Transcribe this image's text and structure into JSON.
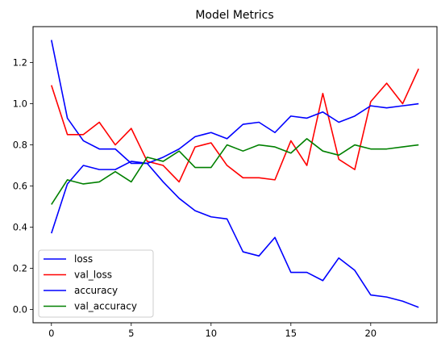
{
  "chart_data": {
    "type": "line",
    "title": "Model Metrics",
    "xlabel": "",
    "ylabel": "",
    "x": [
      0,
      1,
      2,
      3,
      4,
      5,
      6,
      7,
      8,
      9,
      10,
      11,
      12,
      13,
      14,
      15,
      16,
      17,
      18,
      19,
      20,
      21,
      22,
      23
    ],
    "xlim": [
      -1.15,
      24.15
    ],
    "ylim": [
      -0.065,
      1.375
    ],
    "xticks": [
      0,
      5,
      10,
      15,
      20
    ],
    "xtick_labels": [
      "0",
      "5",
      "10",
      "15",
      "20"
    ],
    "yticks": [
      0.0,
      0.2,
      0.4,
      0.6,
      0.8,
      1.0,
      1.2
    ],
    "ytick_labels": [
      "0.0",
      "0.2",
      "0.4",
      "0.6",
      "0.8",
      "1.0",
      "1.2"
    ],
    "grid": false,
    "legend_position": "lower-left",
    "series": [
      {
        "name": "loss",
        "color": "#0000ff",
        "values": [
          1.31,
          0.93,
          0.82,
          0.78,
          0.78,
          0.71,
          0.71,
          0.62,
          0.54,
          0.48,
          0.45,
          0.44,
          0.28,
          0.26,
          0.35,
          0.18,
          0.18,
          0.14,
          0.25,
          0.19,
          0.07,
          0.06,
          0.04,
          0.01
        ]
      },
      {
        "name": "val_loss",
        "color": "#ff0000",
        "values": [
          1.09,
          0.85,
          0.85,
          0.91,
          0.8,
          0.88,
          0.72,
          0.7,
          0.62,
          0.79,
          0.81,
          0.7,
          0.64,
          0.64,
          0.63,
          0.82,
          0.7,
          1.05,
          0.73,
          0.68,
          1.01,
          1.1,
          1.0,
          1.17
        ]
      },
      {
        "name": "accuracy",
        "color": "#0000ff",
        "values": [
          0.37,
          0.61,
          0.7,
          0.68,
          0.68,
          0.72,
          0.71,
          0.74,
          0.78,
          0.84,
          0.86,
          0.83,
          0.9,
          0.91,
          0.86,
          0.94,
          0.93,
          0.96,
          0.91,
          0.94,
          0.99,
          0.98,
          0.99,
          1.0
        ]
      },
      {
        "name": "val_accuracy",
        "color": "#008000",
        "values": [
          0.51,
          0.63,
          0.61,
          0.62,
          0.67,
          0.62,
          0.74,
          0.72,
          0.77,
          0.69,
          0.69,
          0.8,
          0.77,
          0.8,
          0.79,
          0.76,
          0.83,
          0.77,
          0.75,
          0.8,
          0.78,
          0.78,
          0.79,
          0.8
        ]
      }
    ]
  }
}
